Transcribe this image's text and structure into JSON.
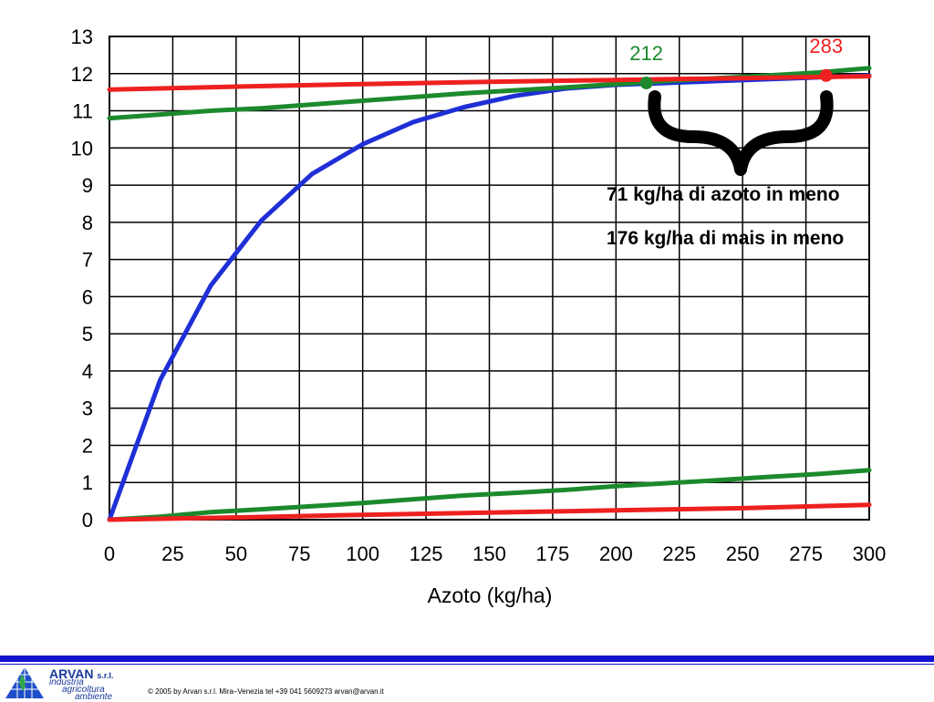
{
  "chart_data": {
    "type": "line",
    "xlabel": "Azoto (kg/ha)",
    "ylabel": "",
    "xlim": [
      0,
      300
    ],
    "ylim": [
      0,
      13
    ],
    "x_ticks": [
      0,
      25,
      50,
      75,
      100,
      125,
      150,
      175,
      200,
      225,
      250,
      275,
      300
    ],
    "y_ticks": [
      0,
      1,
      2,
      3,
      4,
      5,
      6,
      7,
      8,
      9,
      10,
      11,
      12,
      13
    ],
    "grid": true,
    "series": [
      {
        "color": "#1f2fd6",
        "x": [
          0,
          20,
          40,
          60,
          80,
          100,
          120,
          140,
          160,
          180,
          200,
          220,
          240,
          260,
          280,
          300
        ],
        "y": [
          0,
          3.75,
          6.3,
          8.05,
          9.3,
          10.1,
          10.7,
          11.1,
          11.4,
          11.6,
          11.7,
          11.75,
          11.8,
          11.85,
          11.9,
          11.95
        ]
      },
      {
        "color": "#1c8a2c",
        "x": [
          0,
          20,
          40,
          60,
          80,
          100,
          120,
          140,
          160,
          180,
          200,
          220,
          240,
          260,
          280,
          300
        ],
        "y": [
          10.8,
          10.9,
          11.0,
          11.07,
          11.17,
          11.27,
          11.37,
          11.47,
          11.55,
          11.63,
          11.72,
          11.8,
          11.88,
          11.95,
          12.03,
          12.15
        ]
      },
      {
        "color": "#ee2020",
        "x": [
          0,
          50,
          100,
          150,
          200,
          250,
          300
        ],
        "y": [
          11.57,
          11.65,
          11.72,
          11.78,
          11.83,
          11.88,
          11.93
        ]
      },
      {
        "color": "#1c8a2c",
        "x": [
          0,
          20,
          40,
          60,
          80,
          100,
          120,
          140,
          160,
          180,
          200,
          220,
          240,
          260,
          280,
          300
        ],
        "y": [
          0,
          0.08,
          0.2,
          0.28,
          0.36,
          0.45,
          0.55,
          0.65,
          0.72,
          0.8,
          0.9,
          0.98,
          1.06,
          1.15,
          1.23,
          1.33
        ]
      },
      {
        "color": "#ee2020",
        "x": [
          0,
          50,
          100,
          150,
          200,
          250,
          300
        ],
        "y": [
          0,
          0.06,
          0.13,
          0.19,
          0.25,
          0.31,
          0.4
        ]
      }
    ],
    "markers": [
      {
        "label": "212",
        "x": 212,
        "y": 11.75,
        "color": "#1c8a2c"
      },
      {
        "label": "283",
        "x": 283,
        "y": 11.95,
        "color": "#ee2020"
      }
    ],
    "annotations": [
      "71 kg/ha di azoto in meno",
      "176 kg/ha di mais in meno"
    ]
  },
  "footer": {
    "logo_name": "ARVAN",
    "logo_suffix": "s.r.l.",
    "logo_line1": "industria",
    "logo_line2": "agricoltura",
    "logo_line3": "ambiente",
    "copyright": "© 2005 by Arvan s.r.l. Mira–Venezia tel +39 041 5609273 arvan@arvan.it"
  },
  "colors": {
    "accent": "#1111cc",
    "grid": "#000000"
  }
}
